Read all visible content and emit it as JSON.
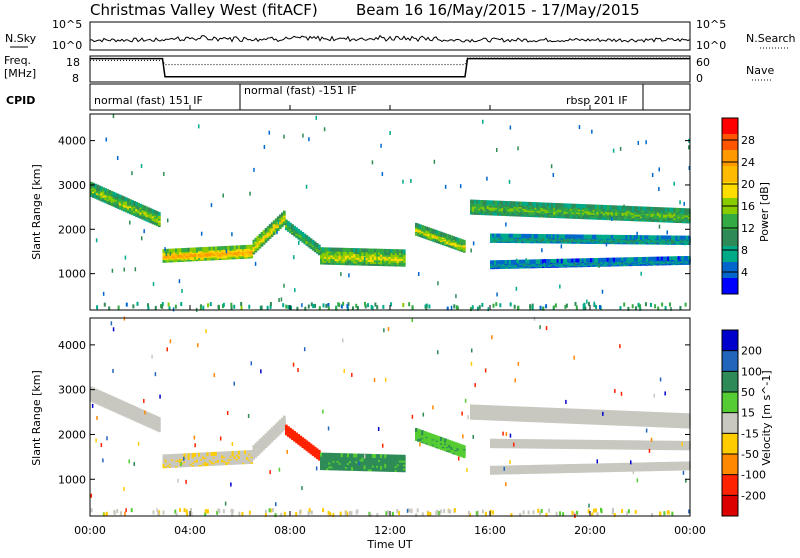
{
  "header": {
    "site": "Christmas Valley West (fitACF)",
    "beam_date": "Beam 16  16/May/2015 - 17/May/2015"
  },
  "noise_panel": {
    "left_label": "N.Sky",
    "right_label": "N.Search",
    "ticks_left": [
      "10^5",
      "10^0"
    ],
    "ticks_right": [
      "10^5",
      "10^0"
    ]
  },
  "freq_panel": {
    "left_label_1": "Freq.",
    "left_label_2": "[MHz]",
    "right_label": "Nave",
    "ticks_left": [
      "18",
      "8"
    ],
    "ticks_right": [
      "60",
      "0"
    ]
  },
  "cpid_panel": {
    "label": "CPID",
    "segments": [
      {
        "text": "normal (fast) 151 IF"
      },
      {
        "text": "normal (fast) -151 IF"
      },
      {
        "text": "rbsp 201 IF"
      }
    ]
  },
  "power_panel": {
    "ylabel": "Slant Range [km]",
    "colorbar_label": "Power [dB]",
    "colorbar_ticks": [
      "28",
      "24",
      "20",
      "16",
      "12",
      "8",
      "4"
    ],
    "colors": [
      "#ff0000",
      "#ff5500",
      "#ff9900",
      "#ffbb00",
      "#ffdd00",
      "#88cc00",
      "#33aa44",
      "#2e8b57",
      "#00aa88",
      "#0066cc",
      "#0000ff"
    ]
  },
  "velocity_panel": {
    "ylabel": "Slant Range [km]",
    "colorbar_label": "Velocity [m s^-1]",
    "colorbar_ticks": [
      "200",
      "100",
      "50",
      "15",
      "-15",
      "-50",
      "-100",
      "-200"
    ],
    "colors": [
      "#0000cc",
      "#2266bb",
      "#2e8b57",
      "#55cc33",
      "#c8c8c0",
      "#ffcc00",
      "#ff8800",
      "#ff2200",
      "#dd0000"
    ]
  },
  "xaxis": {
    "label": "Time UT",
    "ticks": [
      "00:00",
      "04:00",
      "08:00",
      "12:00",
      "16:00",
      "20:00",
      "00:00"
    ]
  },
  "chart_data": {
    "type": "heatmap",
    "x_range_hours": [
      0,
      24
    ],
    "y_range_km": [
      180,
      4600
    ],
    "yticks_km": [
      1000,
      2000,
      3000,
      4000
    ],
    "xticks_hours": [
      0,
      4,
      8,
      12,
      16,
      20,
      24
    ],
    "power_scale_db": [
      0,
      30
    ],
    "velocity_scale_ms": [
      -250,
      250
    ],
    "freq_mhz": [
      {
        "t": 0,
        "v": 17
      },
      {
        "t": 2.9,
        "v": 17
      },
      {
        "t": 3,
        "v": 10
      },
      {
        "t": 15,
        "v": 10
      },
      {
        "t": 15.1,
        "v": 17
      },
      {
        "t": 24,
        "v": 17
      }
    ],
    "nave": [
      {
        "t": 0,
        "v": 50
      },
      {
        "t": 2.9,
        "v": 50
      },
      {
        "t": 3,
        "v": 40
      },
      {
        "t": 15,
        "v": 40
      },
      {
        "t": 15.1,
        "v": 55
      },
      {
        "t": 24,
        "v": 55
      }
    ],
    "cpid_boundaries_hours": [
      0,
      6,
      22.1,
      24
    ],
    "scatter_bands": [
      {
        "t0": 0,
        "t1": 2.8,
        "r0": 2900,
        "r1": 2200,
        "width": 250,
        "power": 16,
        "velocity": 0
      },
      {
        "t0": 2.9,
        "t1": 6.5,
        "r0": 1400,
        "r1": 1500,
        "width": 220,
        "power": 24,
        "velocity": -10
      },
      {
        "t0": 6.5,
        "t1": 7.8,
        "r0": 1600,
        "r1": 2300,
        "width": 240,
        "power": 20,
        "velocity": -5
      },
      {
        "t0": 7.8,
        "t1": 9.2,
        "r0": 2100,
        "r1": 1500,
        "width": 150,
        "power": 14,
        "velocity": -160
      },
      {
        "t0": 9.2,
        "t1": 12.6,
        "r0": 1400,
        "r1": 1350,
        "width": 300,
        "power": 18,
        "velocity": 40
      },
      {
        "t0": 13,
        "t1": 15,
        "r0": 2000,
        "r1": 1600,
        "width": 200,
        "power": 18,
        "velocity": 25
      },
      {
        "t0": 15.2,
        "t1": 24,
        "r0": 2500,
        "r1": 2300,
        "width": 250,
        "power": 14,
        "velocity": 0
      },
      {
        "t0": 16,
        "t1": 24,
        "r0": 1800,
        "r1": 1750,
        "width": 120,
        "power": 8,
        "velocity": 0
      },
      {
        "t0": 16,
        "t1": 24,
        "r0": 1200,
        "r1": 1300,
        "width": 110,
        "power": 6,
        "velocity": 0
      }
    ]
  }
}
